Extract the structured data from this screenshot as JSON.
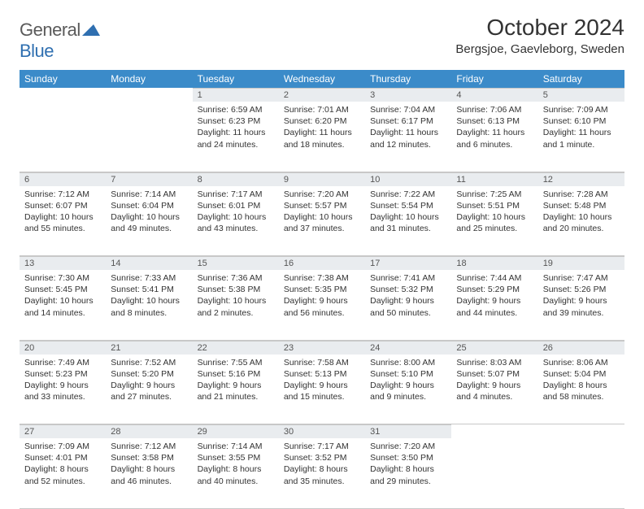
{
  "logo": {
    "general": "General",
    "blue": "Blue"
  },
  "header": {
    "title": "October 2024",
    "location": "Bergsjoe, Gaevleborg, Sweden"
  },
  "colors": {
    "header_bg": "#3b8bc9",
    "header_text": "#ffffff",
    "daynum_bg": "#e9ecef",
    "border": "#c8c8c8",
    "logo_gray": "#5a5a5a",
    "logo_blue": "#2f6fb0"
  },
  "dayHeaders": [
    "Sunday",
    "Monday",
    "Tuesday",
    "Wednesday",
    "Thursday",
    "Friday",
    "Saturday"
  ],
  "weeks": [
    [
      null,
      null,
      {
        "n": "1",
        "sr": "6:59 AM",
        "ss": "6:23 PM",
        "dl": "11 hours and 24 minutes."
      },
      {
        "n": "2",
        "sr": "7:01 AM",
        "ss": "6:20 PM",
        "dl": "11 hours and 18 minutes."
      },
      {
        "n": "3",
        "sr": "7:04 AM",
        "ss": "6:17 PM",
        "dl": "11 hours and 12 minutes."
      },
      {
        "n": "4",
        "sr": "7:06 AM",
        "ss": "6:13 PM",
        "dl": "11 hours and 6 minutes."
      },
      {
        "n": "5",
        "sr": "7:09 AM",
        "ss": "6:10 PM",
        "dl": "11 hours and 1 minute."
      }
    ],
    [
      {
        "n": "6",
        "sr": "7:12 AM",
        "ss": "6:07 PM",
        "dl": "10 hours and 55 minutes."
      },
      {
        "n": "7",
        "sr": "7:14 AM",
        "ss": "6:04 PM",
        "dl": "10 hours and 49 minutes."
      },
      {
        "n": "8",
        "sr": "7:17 AM",
        "ss": "6:01 PM",
        "dl": "10 hours and 43 minutes."
      },
      {
        "n": "9",
        "sr": "7:20 AM",
        "ss": "5:57 PM",
        "dl": "10 hours and 37 minutes."
      },
      {
        "n": "10",
        "sr": "7:22 AM",
        "ss": "5:54 PM",
        "dl": "10 hours and 31 minutes."
      },
      {
        "n": "11",
        "sr": "7:25 AM",
        "ss": "5:51 PM",
        "dl": "10 hours and 25 minutes."
      },
      {
        "n": "12",
        "sr": "7:28 AM",
        "ss": "5:48 PM",
        "dl": "10 hours and 20 minutes."
      }
    ],
    [
      {
        "n": "13",
        "sr": "7:30 AM",
        "ss": "5:45 PM",
        "dl": "10 hours and 14 minutes."
      },
      {
        "n": "14",
        "sr": "7:33 AM",
        "ss": "5:41 PM",
        "dl": "10 hours and 8 minutes."
      },
      {
        "n": "15",
        "sr": "7:36 AM",
        "ss": "5:38 PM",
        "dl": "10 hours and 2 minutes."
      },
      {
        "n": "16",
        "sr": "7:38 AM",
        "ss": "5:35 PM",
        "dl": "9 hours and 56 minutes."
      },
      {
        "n": "17",
        "sr": "7:41 AM",
        "ss": "5:32 PM",
        "dl": "9 hours and 50 minutes."
      },
      {
        "n": "18",
        "sr": "7:44 AM",
        "ss": "5:29 PM",
        "dl": "9 hours and 44 minutes."
      },
      {
        "n": "19",
        "sr": "7:47 AM",
        "ss": "5:26 PM",
        "dl": "9 hours and 39 minutes."
      }
    ],
    [
      {
        "n": "20",
        "sr": "7:49 AM",
        "ss": "5:23 PM",
        "dl": "9 hours and 33 minutes."
      },
      {
        "n": "21",
        "sr": "7:52 AM",
        "ss": "5:20 PM",
        "dl": "9 hours and 27 minutes."
      },
      {
        "n": "22",
        "sr": "7:55 AM",
        "ss": "5:16 PM",
        "dl": "9 hours and 21 minutes."
      },
      {
        "n": "23",
        "sr": "7:58 AM",
        "ss": "5:13 PM",
        "dl": "9 hours and 15 minutes."
      },
      {
        "n": "24",
        "sr": "8:00 AM",
        "ss": "5:10 PM",
        "dl": "9 hours and 9 minutes."
      },
      {
        "n": "25",
        "sr": "8:03 AM",
        "ss": "5:07 PM",
        "dl": "9 hours and 4 minutes."
      },
      {
        "n": "26",
        "sr": "8:06 AM",
        "ss": "5:04 PM",
        "dl": "8 hours and 58 minutes."
      }
    ],
    [
      {
        "n": "27",
        "sr": "7:09 AM",
        "ss": "4:01 PM",
        "dl": "8 hours and 52 minutes."
      },
      {
        "n": "28",
        "sr": "7:12 AM",
        "ss": "3:58 PM",
        "dl": "8 hours and 46 minutes."
      },
      {
        "n": "29",
        "sr": "7:14 AM",
        "ss": "3:55 PM",
        "dl": "8 hours and 40 minutes."
      },
      {
        "n": "30",
        "sr": "7:17 AM",
        "ss": "3:52 PM",
        "dl": "8 hours and 35 minutes."
      },
      {
        "n": "31",
        "sr": "7:20 AM",
        "ss": "3:50 PM",
        "dl": "8 hours and 29 minutes."
      },
      null,
      null
    ]
  ],
  "labels": {
    "sunrise": "Sunrise:",
    "sunset": "Sunset:",
    "daylight": "Daylight:"
  }
}
